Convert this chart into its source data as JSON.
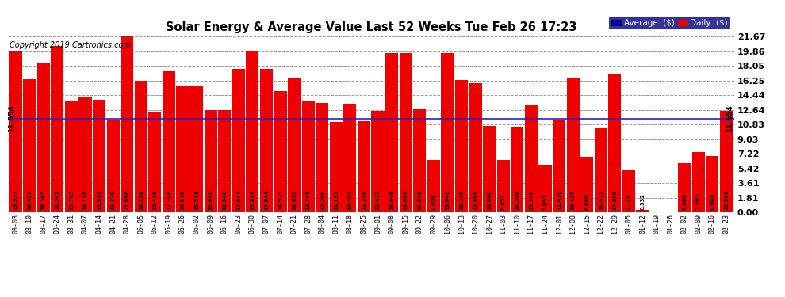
{
  "title": "Solar Energy & Average Value Last 52 Weeks Tue Feb 26 17:23",
  "copyright": "Copyright 2019 Cartronics.com",
  "average_line": 11.554,
  "average_label": "11.554",
  "bar_color": "#ee0000",
  "average_line_color": "#2222cc",
  "background_color": "#ffffff",
  "plot_bg_color": "#ffffff",
  "grid_color": "#999999",
  "yticks": [
    0.0,
    1.81,
    3.61,
    5.42,
    7.22,
    9.03,
    10.83,
    12.64,
    14.44,
    16.25,
    18.05,
    19.86,
    21.67
  ],
  "categories": [
    "03-03",
    "03-10",
    "03-17",
    "03-24",
    "03-31",
    "04-07",
    "04-14",
    "04-21",
    "04-28",
    "05-05",
    "05-12",
    "05-19",
    "05-26",
    "06-02",
    "06-09",
    "06-16",
    "06-23",
    "06-30",
    "07-07",
    "07-14",
    "07-21",
    "07-28",
    "08-04",
    "08-11",
    "08-18",
    "08-25",
    "09-01",
    "09-08",
    "09-15",
    "09-22",
    "09-29",
    "10-06",
    "10-13",
    "10-20",
    "10-27",
    "11-03",
    "11-10",
    "11-17",
    "11-24",
    "12-01",
    "12-08",
    "12-15",
    "12-22",
    "12-29",
    "01-05",
    "01-12",
    "01-19",
    "01-26",
    "02-02",
    "02-09",
    "02-16",
    "02-23"
  ],
  "values": [
    19.937,
    16.452,
    18.345,
    20.543,
    13.703,
    14.128,
    13.891,
    11.37,
    21.666,
    16.228,
    12.439,
    17.348,
    15.616,
    15.571,
    12.64,
    12.64,
    17.644,
    19.819,
    17.644,
    14.929,
    16.635,
    13.748,
    13.5,
    11.135,
    13.407,
    11.246,
    12.473,
    19.609,
    19.609,
    12.836,
    6.496,
    19.64,
    16.305,
    15.884,
    10.66,
    6.452,
    10.506,
    13.24,
    5.891,
    11.43,
    16.475,
    6.88,
    10.475,
    17.008,
    5.174,
    0.332,
    0.0,
    0.035,
    6.088,
    7.39,
    6.988,
    12.502
  ],
  "legend_avg_color": "#000099",
  "legend_avg_label": "Average  ($)",
  "legend_daily_color": "#ee0000",
  "legend_daily_label": "Daily  ($)"
}
